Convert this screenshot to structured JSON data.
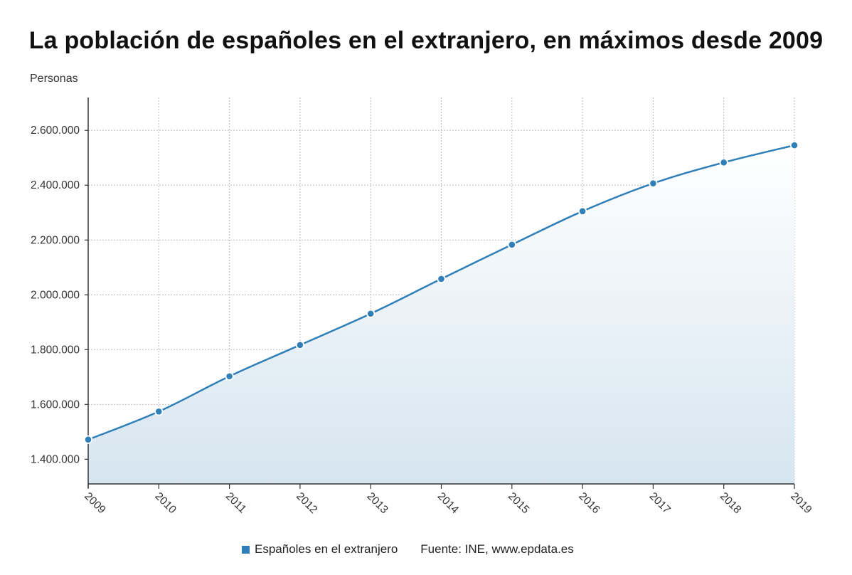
{
  "chart_data": {
    "type": "area",
    "title": "La población de españoles en el extranjero, en máximos desde 2009",
    "ylabel": "Personas",
    "xlabel": "",
    "categories": [
      "2009",
      "2010",
      "2011",
      "2012",
      "2013",
      "2014",
      "2015",
      "2016",
      "2017",
      "2018",
      "2019"
    ],
    "series": [
      {
        "name": "Españoles en el extranjero",
        "values": [
          1471691,
          1574123,
          1702778,
          1816835,
          1931248,
          2058048,
          2183043,
          2305030,
          2406611,
          2482808,
          2545729
        ],
        "color": "#2f7fb8"
      }
    ],
    "ylim": [
      1310000,
      2720000
    ],
    "yticks": [
      1400000,
      1600000,
      1800000,
      2000000,
      2200000,
      2400000,
      2600000
    ],
    "ytick_labels": [
      "1.400.000",
      "1.600.000",
      "1.800.000",
      "2.000.000",
      "2.200.000",
      "2.400.000",
      "2.600.000"
    ],
    "grid": true,
    "legend_position": "bottom"
  },
  "legend": {
    "label": "Españoles en el extranjero",
    "source": "Fuente: INE, www.epdata.es"
  }
}
